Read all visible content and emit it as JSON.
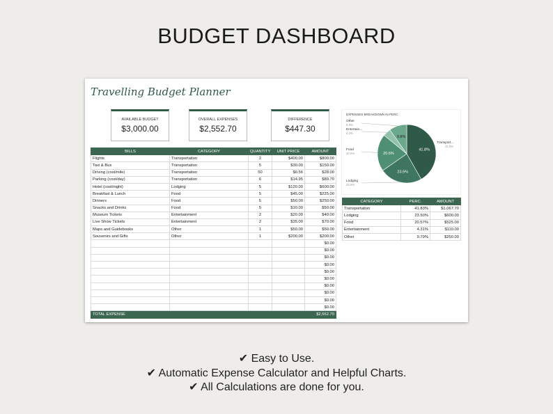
{
  "header": {
    "title": "BUDGET DASHBOARD"
  },
  "sheet": {
    "title": "Travelling Budget Planner",
    "cards": [
      {
        "label": "AVAILABLE BUDGET",
        "value": "$3,000.00"
      },
      {
        "label": "OVERALL EXPENSES",
        "value": "$2,552.70"
      },
      {
        "label": "DIFFERENCE",
        "value": "$447.30"
      }
    ],
    "expenses": {
      "header": [
        "BILLS",
        "CATEGORY",
        "QUANTITY",
        "UNIT PRICE",
        "AMOUNT"
      ],
      "rows": [
        [
          "Flights",
          "Transportation",
          "2",
          "$400.00",
          "$800.00"
        ],
        [
          "Taxi & Bus",
          "Transportation",
          "5",
          "$30.00",
          "$150.00"
        ],
        [
          "Driving (cost/mile)",
          "Transportation",
          "50",
          "$0.56",
          "$28.00"
        ],
        [
          "Parking (cost/day)",
          "Transportation",
          "6",
          "$14.95",
          "$89.70"
        ],
        [
          "Hotel (cost/night)",
          "Lodging",
          "5",
          "$120.00",
          "$600.00"
        ],
        [
          "Breakfast & Lunch",
          "Food",
          "5",
          "$45.00",
          "$225.00"
        ],
        [
          "Dinners",
          "Food",
          "5",
          "$50.00",
          "$250.00"
        ],
        [
          "Snacks and Drinks",
          "Food",
          "5",
          "$10.00",
          "$50.00"
        ],
        [
          "Museum Tickets",
          "Entertainment",
          "2",
          "$20.00",
          "$40.00"
        ],
        [
          "Live Show Tickets",
          "Entertainment",
          "2",
          "$35.00",
          "$70.00"
        ],
        [
          "Maps and Guidebooks",
          "Other",
          "1",
          "$50.00",
          "$50.00"
        ],
        [
          "Souvenirs and Gifts",
          "Other",
          "1",
          "$200.00",
          "$200.00"
        ]
      ],
      "empty_amounts": [
        "$0.00",
        "$0.00",
        "$0.00",
        "$0.00",
        "$0.00",
        "$0.00",
        "$0.00",
        "$0.00",
        "$0.00",
        "$0.00"
      ],
      "total": {
        "label": "TOTAL EXPENSE",
        "value": "$2,552.70"
      }
    },
    "pie": {
      "type": "pie",
      "title": "EXPENSES BREAKDOWN IN PERC.",
      "categories": [
        "Transport...",
        "Lodging",
        "Food",
        "Entertain...",
        "Other"
      ],
      "values": [
        41.8,
        23.5,
        20.6,
        4.3,
        9.8
      ],
      "value_labels": [
        "41.8%",
        "23.5%",
        "20.6%",
        "4.3%",
        "9.8%"
      ],
      "colors": [
        "#2f5a48",
        "#3e7661",
        "#4f8f74",
        "#93c2ac",
        "#6ba88c"
      ]
    },
    "summary": {
      "header": [
        "CATEGORY",
        "PERC.",
        "AMOUNT"
      ],
      "rows": [
        [
          "Transportation",
          "41.83%",
          "$1,067.70"
        ],
        [
          "Lodging",
          "23.50%",
          "$600.00"
        ],
        [
          "Food",
          "20.57%",
          "$525.00"
        ],
        [
          "Entertainment",
          "4.31%",
          "$110.00"
        ],
        [
          "Other",
          "9.79%",
          "$250.00"
        ]
      ]
    }
  },
  "features": [
    "✔ Easy to Use.",
    "✔ Automatic Expense Calculator and Helpful Charts.",
    "✔ All Calculations are done for you."
  ]
}
